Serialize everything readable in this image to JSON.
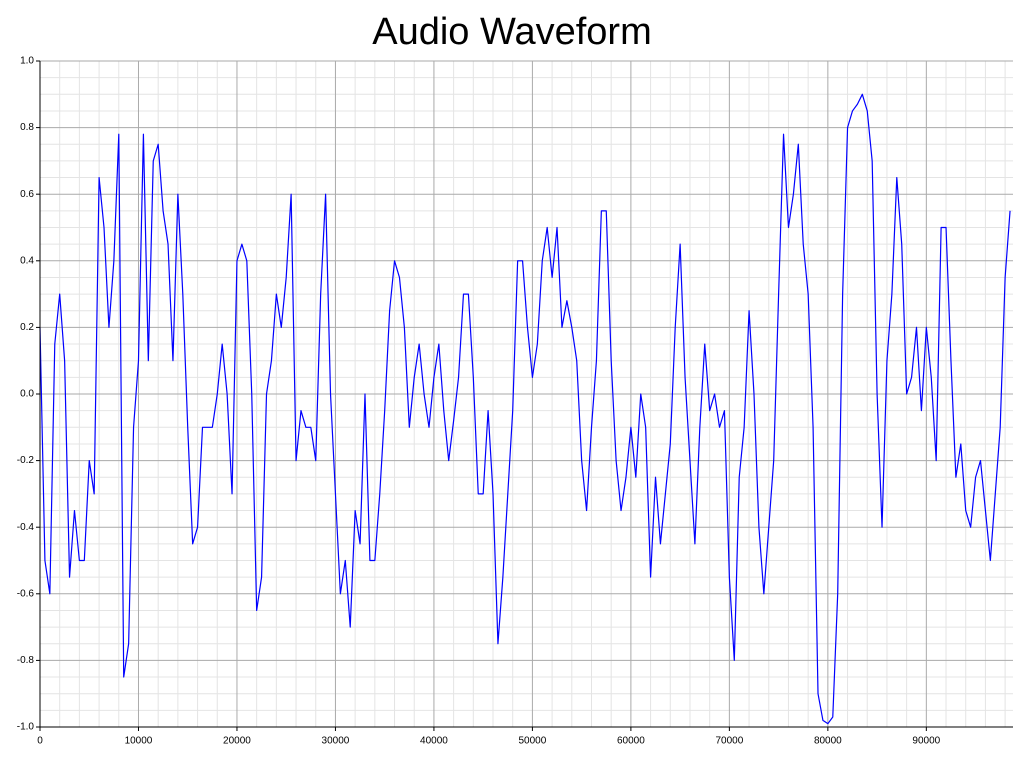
{
  "chart_data": {
    "type": "line",
    "title": "Audio Waveform",
    "xlim": [
      0,
      98800
    ],
    "ylim": [
      -1,
      1
    ],
    "xticks": [
      0,
      10000,
      20000,
      30000,
      40000,
      50000,
      60000,
      70000,
      80000,
      90000
    ],
    "yticks": [
      {
        "value": 1,
        "label": "1.0"
      },
      0.8,
      0.6,
      0.4,
      0.2,
      {
        "value": 0,
        "label": "0.0"
      },
      -0.2,
      -0.4,
      -0.6,
      -0.8,
      {
        "value": -1,
        "label": "-1.0"
      }
    ],
    "xminorticks": [
      2000,
      4000,
      6000,
      8000,
      12000,
      14000,
      16000,
      18000,
      22000,
      24000,
      26000,
      28000,
      32000,
      34000,
      36000,
      38000,
      42000,
      44000,
      46000,
      48000,
      52000,
      54000,
      56000,
      58000,
      62000,
      64000,
      66000,
      68000,
      72000,
      74000,
      76000,
      78000,
      82000,
      84000,
      86000,
      88000,
      92000,
      94000,
      96000,
      98000
    ],
    "yminorticks": [
      0.95,
      0.9,
      0.85,
      0.75,
      0.7,
      0.65,
      0.55,
      0.5,
      0.45,
      0.35,
      0.3,
      0.25,
      0.15,
      0.1,
      0.05,
      -0.05,
      -0.1,
      -0.15,
      -0.25,
      -0.3,
      -0.35,
      -0.45,
      -0.5,
      -0.55,
      -0.65,
      -0.7,
      -0.75,
      -0.85,
      -0.9,
      -0.95
    ],
    "grid": true,
    "series": [
      {
        "color": "#0000ff",
        "x": [
          0,
          500,
          1000,
          1500,
          2000,
          2500,
          3000,
          3500,
          4000,
          4500,
          5000,
          5500,
          6000,
          6500,
          7000,
          7500,
          8000,
          8500,
          9000,
          9500,
          10000,
          10500,
          11000,
          11500,
          12000,
          12500,
          13000,
          13500,
          14000,
          14500,
          15000,
          15500,
          16000,
          16500,
          17000,
          17500,
          18000,
          18500,
          19000,
          19500,
          20000,
          20500,
          21000,
          21500,
          22000,
          22500,
          23000,
          23500,
          24000,
          24500,
          25000,
          25500,
          26000,
          26500,
          27000,
          27500,
          28000,
          28500,
          29000,
          29500,
          30000,
          30500,
          31000,
          31500,
          32000,
          32500,
          33000,
          33500,
          34000,
          34500,
          35000,
          35500,
          36000,
          36500,
          37000,
          37500,
          38000,
          38500,
          39000,
          39500,
          40000,
          40500,
          41000,
          41500,
          42000,
          42500,
          43000,
          43500,
          44000,
          44500,
          45000,
          45500,
          46000,
          46500,
          47000,
          47500,
          48000,
          48500,
          49000,
          49500,
          50000,
          50500,
          51000,
          51500,
          52000,
          52500,
          53000,
          53500,
          54000,
          54500,
          55000,
          55500,
          56000,
          56500,
          57000,
          57500,
          58000,
          58500,
          59000,
          59500,
          60000,
          60500,
          61000,
          61500,
          62000,
          62500,
          63000,
          63500,
          64000,
          64500,
          65000,
          65500,
          66000,
          66500,
          67000,
          67500,
          68000,
          68500,
          69000,
          69500,
          70000,
          70500,
          71000,
          71500,
          72000,
          72500,
          73000,
          73500,
          74000,
          74500,
          75000,
          75500,
          76000,
          76500,
          77000,
          77500,
          78000,
          78500,
          79000,
          79500,
          80000,
          80500,
          81000,
          81500,
          82000,
          82500,
          83000,
          83500,
          84000,
          84500,
          85000,
          85500,
          86000,
          86500,
          87000,
          87500,
          88000,
          88500,
          89000,
          89500,
          90000,
          90500,
          91000,
          91500,
          92000,
          92500,
          93000,
          93500,
          94000,
          94500,
          95000,
          95500,
          96000,
          96500,
          97000,
          97500,
          98000,
          98500
        ],
        "values": [
          0.2,
          -0.5,
          -0.6,
          0.15,
          0.3,
          0.1,
          -0.55,
          -0.35,
          -0.5,
          -0.5,
          -0.2,
          -0.3,
          0.65,
          0.5,
          0.2,
          0.4,
          0.78,
          -0.85,
          -0.75,
          -0.1,
          0.1,
          0.78,
          0.1,
          0.7,
          0.75,
          0.55,
          0.45,
          0.1,
          0.6,
          0.3,
          -0.1,
          -0.45,
          -0.4,
          -0.1,
          -0.1,
          -0.1,
          0.0,
          0.15,
          0.0,
          -0.3,
          0.4,
          0.45,
          0.4,
          0.0,
          -0.65,
          -0.55,
          0.0,
          0.1,
          0.3,
          0.2,
          0.35,
          0.6,
          -0.2,
          -0.05,
          -0.1,
          -0.1,
          -0.2,
          0.3,
          0.6,
          0.0,
          -0.3,
          -0.6,
          -0.5,
          -0.7,
          -0.35,
          -0.45,
          0.0,
          -0.5,
          -0.5,
          -0.3,
          -0.05,
          0.25,
          0.4,
          0.35,
          0.2,
          -0.1,
          0.05,
          0.15,
          0.0,
          -0.1,
          0.05,
          0.15,
          -0.05,
          -0.2,
          -0.08,
          0.05,
          0.3,
          0.3,
          0.05,
          -0.3,
          -0.3,
          -0.05,
          -0.3,
          -0.75,
          -0.55,
          -0.3,
          -0.05,
          0.4,
          0.4,
          0.2,
          0.05,
          0.15,
          0.4,
          0.5,
          0.35,
          0.5,
          0.2,
          0.28,
          0.2,
          0.1,
          -0.2,
          -0.35,
          -0.1,
          0.1,
          0.55,
          0.55,
          0.1,
          -0.2,
          -0.35,
          -0.25,
          -0.1,
          -0.25,
          0.0,
          -0.1,
          -0.55,
          -0.25,
          -0.45,
          -0.3,
          -0.15,
          0.2,
          0.45,
          0.05,
          -0.2,
          -0.45,
          -0.1,
          0.15,
          -0.05,
          0.0,
          -0.1,
          -0.05,
          -0.55,
          -0.8,
          -0.25,
          -0.1,
          0.25,
          0.0,
          -0.4,
          -0.6,
          -0.4,
          -0.2,
          0.3,
          0.78,
          0.5,
          0.6,
          0.75,
          0.45,
          0.3,
          -0.1,
          -0.9,
          -0.98,
          -0.99,
          -0.97,
          -0.6,
          0.3,
          0.8,
          0.85,
          0.87,
          0.9,
          0.85,
          0.7,
          0.0,
          -0.4,
          0.1,
          0.3,
          0.65,
          0.45,
          0.0,
          0.05,
          0.2,
          -0.05,
          0.2,
          0.05,
          -0.2,
          0.5,
          0.5,
          0.1,
          -0.25,
          -0.15,
          -0.35,
          -0.4,
          -0.25,
          -0.2,
          -0.35,
          -0.5,
          -0.3,
          -0.1,
          0.35,
          0.55
        ]
      }
    ]
  }
}
